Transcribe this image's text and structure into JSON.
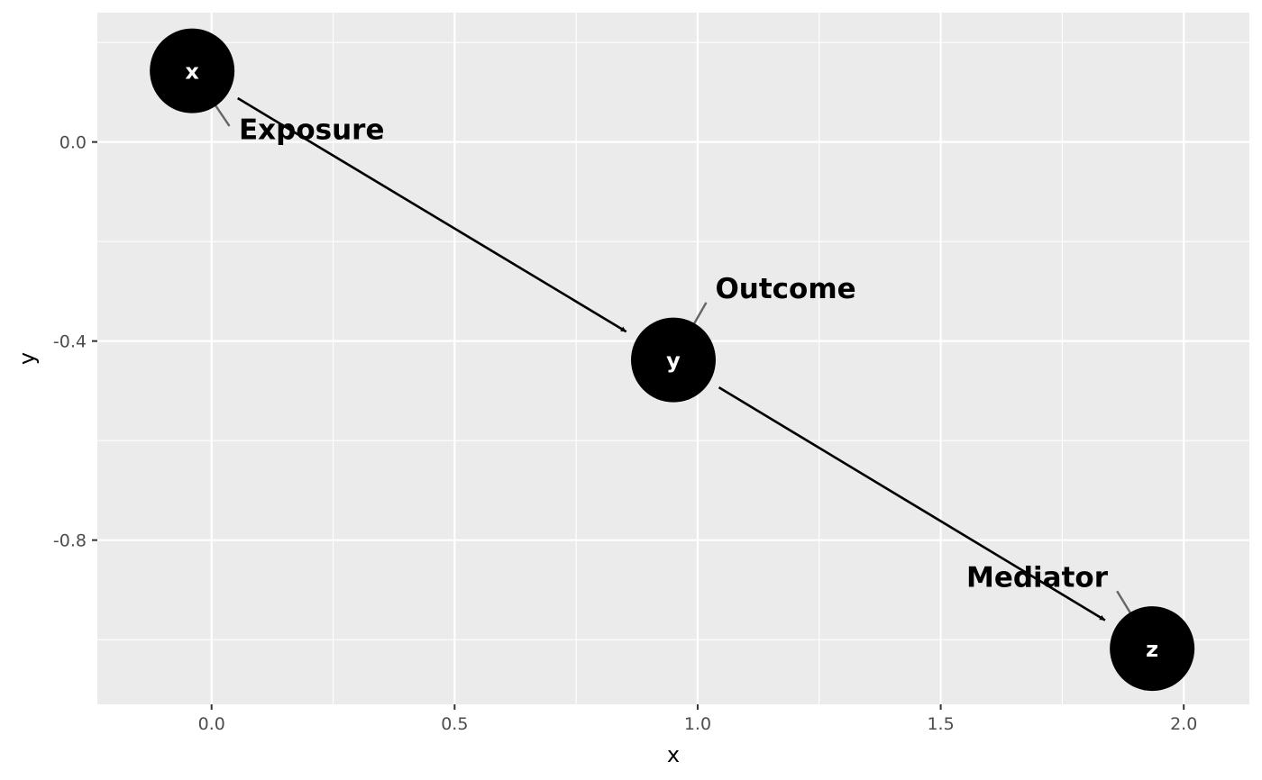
{
  "chart_data": {
    "type": "dag",
    "xlabel": "x",
    "ylabel": "y",
    "xlim": [
      -0.235,
      2.135
    ],
    "ylim": [
      -1.13,
      0.26
    ],
    "x_ticks": [
      0.0,
      0.5,
      1.0,
      1.5,
      2.0
    ],
    "x_tick_labels": [
      "0.0",
      "0.5",
      "1.0",
      "1.5",
      "2.0"
    ],
    "y_ticks": [
      0.0,
      -0.4,
      -0.8
    ],
    "y_tick_labels": [
      "0.0",
      "-0.4",
      "-0.8"
    ],
    "grid": true,
    "nodes": [
      {
        "id": "x",
        "name": "x",
        "x": -0.04,
        "y": 0.143,
        "label": "Exposure",
        "label_x": 0.045,
        "label_y": 0.02
      },
      {
        "id": "y",
        "name": "y",
        "x": 0.95,
        "y": -0.438,
        "label": "Outcome",
        "label_x": 1.025,
        "label_y": -0.31
      },
      {
        "id": "z",
        "name": "z",
        "x": 1.935,
        "y": -1.018,
        "label": "Mediator",
        "label_x": 1.855,
        "label_y": -0.89
      }
    ],
    "edges": [
      {
        "from": "x",
        "to": "y"
      },
      {
        "from": "y",
        "to": "z"
      }
    ]
  }
}
